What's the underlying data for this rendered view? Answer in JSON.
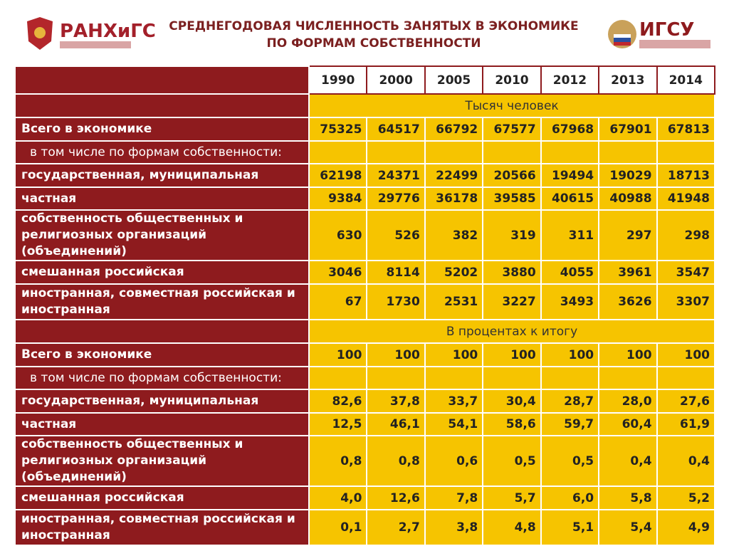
{
  "header": {
    "logo_left": "РАНХиГС",
    "logo_right": "ИГСУ",
    "title": [
      "СРЕДНЕГОДОВАЯ ЧИСЛЕННОСТЬ ЗАНЯТЫХ В ЭКОНОМИКЕ",
      "ПО ФОРМАМ СОБСТВЕННОСТИ"
    ]
  },
  "table": {
    "columns": [
      "1990",
      "2000",
      "2005",
      "2010",
      "2012",
      "2013",
      "2014"
    ],
    "sections": [
      {
        "title": "Тысяч человек",
        "rows": [
          {
            "label": "Всего в экономике",
            "values": [
              "75325",
              "64517",
              "66792",
              "67577",
              "67968",
              "67901",
              "67813"
            ]
          },
          {
            "label": "в том числе по формам собственности:"
          },
          {
            "label": "государственная, муниципальная",
            "values": [
              "62198",
              "24371",
              "22499",
              "20566",
              "19494",
              "19029",
              "18713"
            ]
          },
          {
            "label": "частная",
            "values": [
              "9384",
              "29776",
              "36178",
              "39585",
              "40615",
              "40988",
              "41948"
            ]
          },
          {
            "label": "собственность общественных и религиозных организаций (объединений)",
            "values": [
              "630",
              "526",
              "382",
              "319",
              "311",
              "297",
              "298"
            ]
          },
          {
            "label": "смешанная российская",
            "values": [
              "3046",
              "8114",
              "5202",
              "3880",
              "4055",
              "3961",
              "3547"
            ]
          },
          {
            "label": "иностранная, совместная российская и иностранная",
            "values": [
              "67",
              "1730",
              "2531",
              "3227",
              "3493",
              "3626",
              "3307"
            ]
          }
        ]
      },
      {
        "title": "В процентах к итогу",
        "rows": [
          {
            "label": "Всего в экономике",
            "values": [
              "100",
              "100",
              "100",
              "100",
              "100",
              "100",
              "100"
            ]
          },
          {
            "label": "в том числе по формам собственности:"
          },
          {
            "label": "государственная, муниципальная",
            "values": [
              "82,6",
              "37,8",
              "33,7",
              "30,4",
              "28,7",
              "28,0",
              "27,6"
            ]
          },
          {
            "label": "частная",
            "values": [
              "12,5",
              "46,1",
              "54,1",
              "58,6",
              "59,7",
              "60,4",
              "61,9"
            ]
          },
          {
            "label": "собственность общественных и религиозных организаций (объединений)",
            "values": [
              "0,8",
              "0,8",
              "0,6",
              "0,5",
              "0,5",
              "0,4",
              "0,4"
            ]
          },
          {
            "label": "смешанная российская",
            "values": [
              "4,0",
              "12,6",
              "7,8",
              "5,7",
              "6,0",
              "5,8",
              "5,2"
            ]
          },
          {
            "label": "иностранная, совместная российская и иностранная",
            "values": [
              "0,1",
              "2,7",
              "3,8",
              "4,8",
              "5,1",
              "5,4",
              "4,9"
            ]
          }
        ]
      }
    ]
  }
}
